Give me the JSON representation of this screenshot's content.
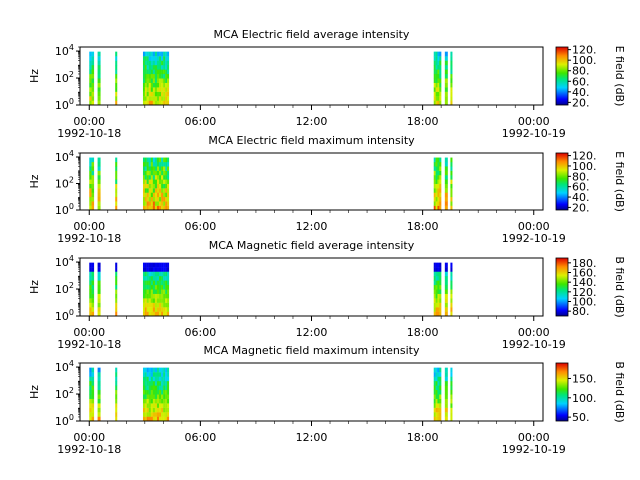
{
  "chart_data": [
    {
      "type": "heatmap",
      "title": "MCA  Electric field average intensity",
      "ylabel": "Hz",
      "y_scale": "log",
      "ylim": [
        1,
        20000
      ],
      "y_ticks": [
        {
          "value": 1,
          "base": "10",
          "exp": "0"
        },
        {
          "value": 100,
          "base": "10",
          "exp": "2"
        },
        {
          "value": 10000,
          "base": "10",
          "exp": "4"
        }
      ],
      "x_ticks": [
        "00:00",
        "06:00",
        "12:00",
        "18:00",
        "00:00"
      ],
      "x_tick_hours": [
        0,
        6,
        12,
        18,
        24
      ],
      "x_date_left": "1992-10-18",
      "x_date_right": "1992-10-19",
      "xlim_hours": [
        -0.5,
        24.5
      ],
      "colorbar_label": "E field (dB)",
      "colorbar_range": [
        15,
        125
      ],
      "colorbar_ticks": [
        "120.",
        "100.",
        "80.",
        "60.",
        "40.",
        "20."
      ],
      "colorbar_tick_values": [
        120,
        100,
        80,
        60,
        40,
        20
      ],
      "data_intervals_hours": [
        [
          0.0,
          0.25
        ],
        [
          0.45,
          0.6
        ],
        [
          1.4,
          1.5
        ],
        [
          2.9,
          3.1
        ],
        [
          3.1,
          4.1
        ],
        [
          4.1,
          4.3
        ],
        [
          18.6,
          19.0
        ],
        [
          19.2,
          19.35
        ],
        [
          19.5,
          19.6
        ]
      ],
      "level_profile": "electric"
    },
    {
      "type": "heatmap",
      "title": "MCA  Electric field maximum intensity",
      "ylabel": "Hz",
      "y_scale": "log",
      "ylim": [
        1,
        20000
      ],
      "y_ticks": [
        {
          "value": 1,
          "base": "10",
          "exp": "0"
        },
        {
          "value": 100,
          "base": "10",
          "exp": "2"
        },
        {
          "value": 10000,
          "base": "10",
          "exp": "4"
        }
      ],
      "x_ticks": [
        "00:00",
        "06:00",
        "12:00",
        "18:00",
        "00:00"
      ],
      "x_tick_hours": [
        0,
        6,
        12,
        18,
        24
      ],
      "x_date_left": "1992-10-18",
      "x_date_right": "1992-10-19",
      "xlim_hours": [
        -0.5,
        24.5
      ],
      "colorbar_label": "E field (dB)",
      "colorbar_range": [
        15,
        125
      ],
      "colorbar_ticks": [
        "120.",
        "100.",
        "80.",
        "60.",
        "40.",
        "20."
      ],
      "colorbar_tick_values": [
        120,
        100,
        80,
        60,
        40,
        20
      ],
      "data_intervals_hours": [
        [
          0.0,
          0.25
        ],
        [
          0.45,
          0.6
        ],
        [
          1.4,
          1.5
        ],
        [
          2.9,
          3.1
        ],
        [
          3.1,
          4.1
        ],
        [
          4.1,
          4.3
        ],
        [
          18.6,
          19.0
        ],
        [
          19.2,
          19.35
        ],
        [
          19.5,
          19.6
        ]
      ],
      "level_profile": "electric-max"
    },
    {
      "type": "heatmap",
      "title": "MCA  Magnetic field average intensity",
      "ylabel": "Hz",
      "y_scale": "log",
      "ylim": [
        1,
        20000
      ],
      "y_ticks": [
        {
          "value": 1,
          "base": "10",
          "exp": "0"
        },
        {
          "value": 100,
          "base": "10",
          "exp": "2"
        },
        {
          "value": 10000,
          "base": "10",
          "exp": "4"
        }
      ],
      "x_ticks": [
        "00:00",
        "06:00",
        "12:00",
        "18:00",
        "00:00"
      ],
      "x_tick_hours": [
        0,
        6,
        12,
        18,
        24
      ],
      "x_date_left": "1992-10-18",
      "x_date_right": "1992-10-19",
      "xlim_hours": [
        -0.5,
        24.5
      ],
      "colorbar_label": "B field (dB)",
      "colorbar_range": [
        70,
        190
      ],
      "colorbar_ticks": [
        "180.",
        "160.",
        "140.",
        "120.",
        "100.",
        "80."
      ],
      "colorbar_tick_values": [
        180,
        160,
        140,
        120,
        100,
        80
      ],
      "data_intervals_hours": [
        [
          0.0,
          0.25
        ],
        [
          0.45,
          0.6
        ],
        [
          1.4,
          1.5
        ],
        [
          2.9,
          3.1
        ],
        [
          3.1,
          4.1
        ],
        [
          4.1,
          4.3
        ],
        [
          18.6,
          19.0
        ],
        [
          19.2,
          19.35
        ],
        [
          19.5,
          19.6
        ]
      ],
      "level_profile": "magnetic"
    },
    {
      "type": "heatmap",
      "title": "MCA  Magnetic field maximum intensity",
      "ylabel": "Hz",
      "y_scale": "log",
      "ylim": [
        1,
        20000
      ],
      "y_ticks": [
        {
          "value": 1,
          "base": "10",
          "exp": "0"
        },
        {
          "value": 100,
          "base": "10",
          "exp": "2"
        },
        {
          "value": 10000,
          "base": "10",
          "exp": "4"
        }
      ],
      "x_ticks": [
        "00:00",
        "06:00",
        "12:00",
        "18:00",
        "00:00"
      ],
      "x_tick_hours": [
        0,
        6,
        12,
        18,
        24
      ],
      "x_date_left": "1992-10-18",
      "x_date_right": "1992-10-19",
      "xlim_hours": [
        -0.5,
        24.5
      ],
      "colorbar_label": "B field (dB)",
      "colorbar_range": [
        40,
        190
      ],
      "colorbar_ticks": [
        "150.",
        "100.",
        "50."
      ],
      "colorbar_tick_values": [
        150,
        100,
        50
      ],
      "data_intervals_hours": [
        [
          0.0,
          0.25
        ],
        [
          0.45,
          0.6
        ],
        [
          1.4,
          1.5
        ],
        [
          2.9,
          3.1
        ],
        [
          3.1,
          4.1
        ],
        [
          4.1,
          4.3
        ],
        [
          18.6,
          19.0
        ],
        [
          19.2,
          19.35
        ],
        [
          19.5,
          19.6
        ]
      ],
      "level_profile": "magnetic-max"
    }
  ]
}
